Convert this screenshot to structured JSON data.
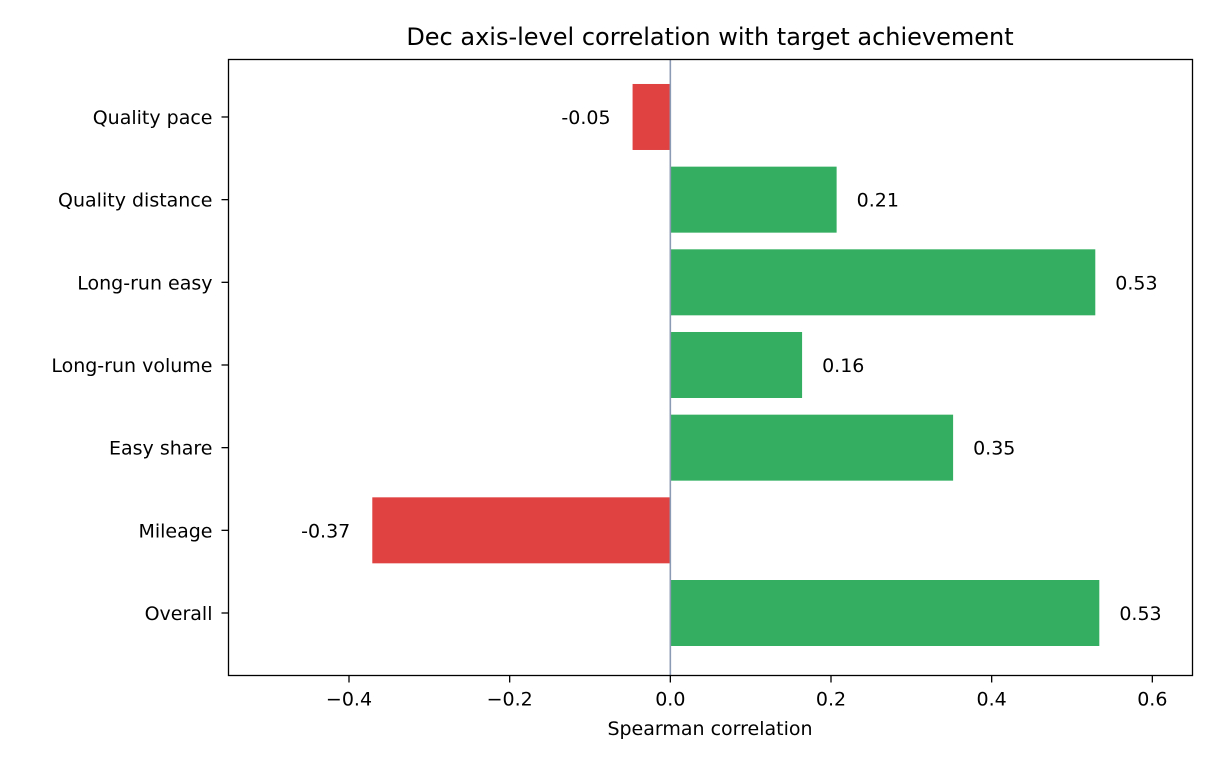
{
  "chart_data": {
    "type": "bar",
    "orientation": "horizontal",
    "title": "Dec axis-level correlation with target achievement",
    "xlabel": "Spearman correlation",
    "ylabel": "",
    "xlim": [
      -0.55,
      0.65
    ],
    "xticks": [
      -0.4,
      -0.2,
      0.0,
      0.2,
      0.4,
      0.6
    ],
    "xtick_labels": [
      "−0.4",
      "−0.2",
      "0.0",
      "0.2",
      "0.4",
      "0.6"
    ],
    "categories": [
      "Overall",
      "Mileage",
      "Easy share",
      "Long-run volume",
      "Long-run easy",
      "Quality distance",
      "Quality pace"
    ],
    "values": [
      0.534,
      -0.371,
      0.352,
      0.164,
      0.529,
      0.207,
      -0.047
    ],
    "value_labels": [
      "0.53",
      "-0.37",
      "0.35",
      "0.16",
      "0.53",
      "0.21",
      "-0.05"
    ],
    "grid": false,
    "zero_line": true,
    "colors": {
      "positive": "#34ae60",
      "negative": "#e04242",
      "zero_line": "#8c9bb5",
      "axis": "#000000"
    }
  }
}
